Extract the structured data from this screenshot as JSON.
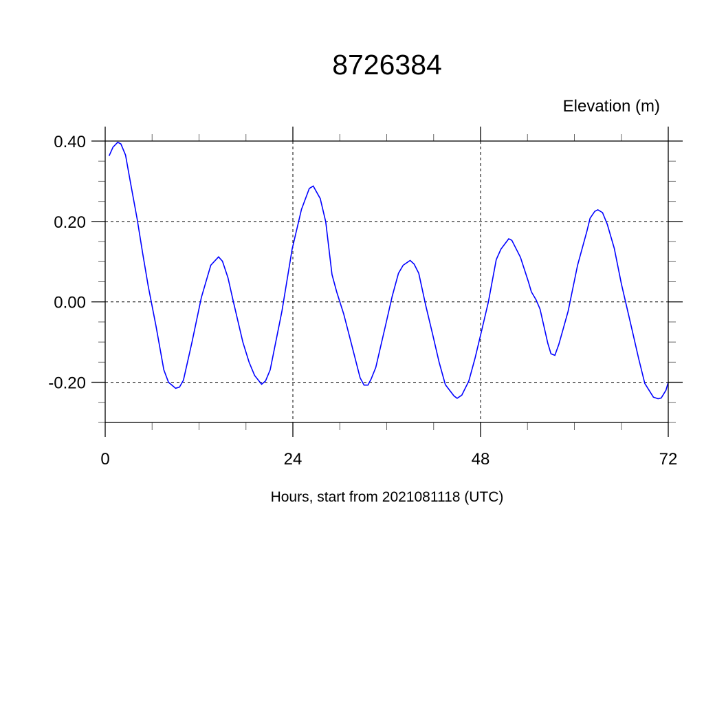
{
  "chart_data": {
    "type": "line",
    "title": "8726384",
    "ylabel": "Elevation (m)",
    "xlabel": "Hours, start from 2021081118 (UTC)",
    "xlim": [
      0,
      72
    ],
    "ylim": [
      -0.3,
      0.4
    ],
    "xticks": [
      0,
      24,
      48,
      72
    ],
    "xtick_labels": [
      "0",
      "24",
      "48",
      "72"
    ],
    "yticks": [
      0.4,
      0.2,
      0.0,
      -0.2
    ],
    "ytick_labels": [
      "0.40",
      "0.20",
      "0.00",
      "-0.20"
    ],
    "grid": true,
    "line_color": "#0000ff",
    "series": [
      {
        "x": [
          0.5,
          1.0,
          1.6,
          2.0,
          2.6,
          3.3,
          4.1,
          4.8,
          5.5,
          6.5,
          7.5,
          8.1,
          9.0,
          9.5,
          10.0,
          11.1,
          12.3,
          13.5,
          14.5,
          15.0,
          15.7,
          16.4,
          17.6,
          18.4,
          19.1,
          20.0,
          20.5,
          21.1,
          22.6,
          23.9,
          25.1,
          26.1,
          26.6,
          27.5,
          28.2,
          29.0,
          29.6,
          30.5,
          31.4,
          32.6,
          33.1,
          33.6,
          34.0,
          34.6,
          35.8,
          36.7,
          37.5,
          38.1,
          39.0,
          39.5,
          40.1,
          41.0,
          41.9,
          42.7,
          43.5,
          44.6,
          45.0,
          45.6,
          46.5,
          47.3,
          48.1,
          49.0,
          50.0,
          50.6,
          51.6,
          52.0,
          53.1,
          54.1,
          54.5,
          55.1,
          55.6,
          56.6,
          57.0,
          57.5,
          58.0,
          58.5,
          59.2,
          60.4,
          61.6,
          62.0,
          62.6,
          63.0,
          63.6,
          64.2,
          65.1,
          66.0,
          67.4,
          68.2,
          69.0,
          70.1,
          70.7,
          71.1,
          71.7,
          72.0
        ],
        "y": [
          0.363,
          0.385,
          0.397,
          0.393,
          0.365,
          0.29,
          0.205,
          0.12,
          0.039,
          -0.06,
          -0.169,
          -0.2,
          -0.215,
          -0.212,
          -0.195,
          -0.1,
          0.011,
          0.091,
          0.112,
          0.101,
          0.06,
          0.0,
          -0.1,
          -0.15,
          -0.183,
          -0.205,
          -0.197,
          -0.169,
          -0.023,
          0.131,
          0.23,
          0.282,
          0.288,
          0.257,
          0.199,
          0.068,
          0.025,
          -0.03,
          -0.098,
          -0.189,
          -0.207,
          -0.207,
          -0.192,
          -0.163,
          -0.063,
          0.014,
          0.071,
          0.091,
          0.103,
          0.094,
          0.071,
          -0.01,
          -0.083,
          -0.15,
          -0.206,
          -0.234,
          -0.24,
          -0.232,
          -0.197,
          -0.14,
          -0.075,
          0.0,
          0.105,
          0.131,
          0.157,
          0.153,
          0.111,
          0.051,
          0.025,
          0.005,
          -0.018,
          -0.103,
          -0.129,
          -0.133,
          -0.106,
          -0.072,
          -0.023,
          0.091,
          0.176,
          0.208,
          0.225,
          0.229,
          0.222,
          0.193,
          0.133,
          0.045,
          -0.072,
          -0.14,
          -0.203,
          -0.237,
          -0.241,
          -0.239,
          -0.22,
          -0.2
        ]
      }
    ]
  }
}
